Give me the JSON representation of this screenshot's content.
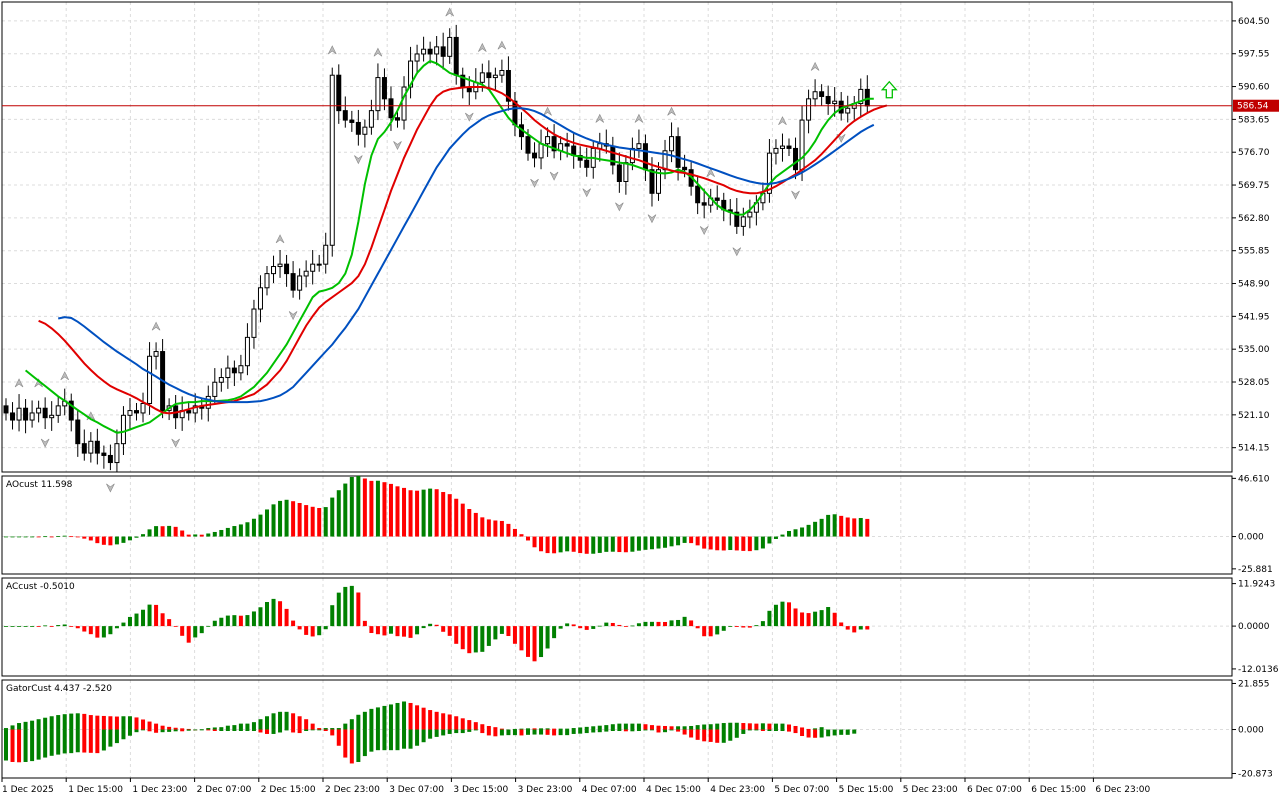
{
  "chart_data": {
    "type": "candlestick",
    "current_price": "586.54",
    "price_axis_ticks": [
      "604.50",
      "597.55",
      "590.60",
      "583.65",
      "576.70",
      "569.75",
      "562.80",
      "555.85",
      "548.90",
      "541.95",
      "535.00",
      "528.05",
      "521.10",
      "514.15"
    ],
    "time_axis_ticks": [
      "1 Dec 2025",
      "1 Dec 15:00",
      "1 Dec 23:00",
      "2 Dec 07:00",
      "2 Dec 15:00",
      "2 Dec 23:00",
      "3 Dec 07:00",
      "3 Dec 15:00",
      "3 Dec 23:00",
      "4 Dec 07:00",
      "4 Dec 15:00",
      "4 Dec 23:00",
      "5 Dec 07:00",
      "5 Dec 15:00",
      "5 Dec 23:00",
      "6 Dec 07:00",
      "6 Dec 15:00",
      "6 Dec 23:00"
    ],
    "price_range": [
      509.0,
      608.5
    ],
    "close": [
      521.5,
      520.0,
      522.5,
      520.0,
      521.5,
      522.5,
      520.5,
      521.0,
      523.0,
      524.0,
      520.0,
      515.0,
      513.0,
      515.5,
      513.0,
      512.5,
      511.0,
      515.0,
      521.0,
      522.0,
      521.5,
      523.5,
      533.5,
      534.5,
      522.0,
      523.0,
      520.5,
      522.0,
      521.5,
      523.0,
      522.5,
      525.0,
      528.0,
      529.0,
      531.0,
      530.0,
      531.5,
      537.5,
      543.5,
      548.0,
      551.0,
      552.5,
      553.0,
      551.0,
      547.5,
      550.5,
      551.5,
      553.0,
      553.0,
      557.0,
      593.0,
      585.5,
      583.5,
      583.0,
      580.5,
      582.0,
      585.5,
      592.5,
      588.0,
      584.0,
      583.5,
      590.5,
      596.0,
      597.5,
      598.5,
      597.5,
      599.0,
      597.0,
      601.0,
      593.0,
      590.5,
      589.5,
      591.5,
      593.5,
      592.5,
      593.0,
      594.0,
      587.5,
      582.5,
      580.0,
      576.5,
      575.5,
      578.5,
      580.0,
      577.0,
      578.5,
      578.0,
      576.0,
      575.0,
      573.5,
      577.5,
      578.5,
      578.0,
      574.0,
      570.5,
      574.5,
      577.5,
      578.5,
      573.0,
      568.0,
      573.0,
      577.0,
      580.0,
      573.5,
      573.0,
      569.5,
      566.0,
      565.5,
      567.0,
      566.5,
      564.5,
      564.0,
      561.0,
      563.0,
      564.0,
      566.0,
      568.0,
      576.5,
      577.5,
      578.0,
      577.5,
      573.0,
      583.5,
      588.0,
      589.5,
      588.5,
      587.0,
      587.5,
      585.0,
      586.0,
      587.0,
      590.0,
      586.5
    ],
    "series": [
      {
        "name": "",
        "color": "#00c000",
        "values": [
          530.5,
          529.4,
          528.3,
          527.2,
          526.1,
          525.0,
          524.1,
          523.1,
          522.1,
          521.2,
          520.2,
          519.5,
          518.7,
          518.0,
          517.3,
          517.5,
          518.0,
          518.5,
          519.0,
          519.5,
          520.5,
          521.5,
          522.5,
          523.4,
          523.6,
          523.8,
          523.8,
          524.0,
          524.0,
          524.0,
          524.1,
          524.2,
          524.5,
          525.0,
          526.0,
          527.0,
          528.5,
          530.0,
          532.0,
          534.0,
          536.0,
          538.5,
          541.0,
          543.5,
          546.0,
          547.2,
          547.5,
          548.0,
          549.0,
          551.0,
          555.0,
          562.0,
          570.0,
          576.0,
          579.5,
          581.0,
          583.0,
          585.5,
          588.5,
          591.0,
          593.5,
          595.0,
          596.0,
          595.5,
          594.5,
          593.5,
          593.0,
          592.5,
          592.0,
          591.5,
          591.0,
          590.0,
          588.0,
          586.0,
          584.0,
          582.5,
          581.5,
          580.5,
          579.5,
          578.5,
          578.0,
          577.5,
          577.0,
          576.5,
          576.0,
          575.8,
          575.5,
          575.5,
          575.2,
          575.0,
          574.8,
          574.5,
          574.3,
          574.0,
          573.5,
          573.0,
          572.6,
          572.3,
          572.2,
          572.4,
          573.0,
          572.5,
          571.5,
          570.0,
          568.5,
          567.0,
          565.5,
          564.5,
          564.0,
          563.5,
          563.5,
          564.5,
          566.0,
          568.0,
          570.0,
          571.5,
          572.5,
          573.5,
          574.5,
          575.5,
          577.0,
          579.0,
          581.5,
          583.5,
          585.0,
          586.0,
          586.5,
          587.0,
          587.5,
          588.0,
          588.0
        ]
      },
      {
        "name": "",
        "color": "#e00000",
        "values": [
          541.0,
          540.4,
          539.4,
          538.2,
          536.8,
          535.2,
          533.6,
          532.0,
          530.6,
          529.3,
          528.2,
          527.2,
          526.5,
          525.9,
          525.3,
          524.6,
          523.8,
          523.1,
          522.3,
          521.6,
          521.4,
          521.6,
          521.9,
          522.3,
          522.7,
          523.0,
          523.2,
          523.4,
          523.6,
          523.8,
          524.0,
          524.5,
          525.0,
          525.5,
          526.5,
          527.5,
          529.0,
          530.5,
          532.5,
          535.0,
          537.5,
          540.0,
          542.0,
          543.8,
          545.0,
          546.0,
          547.0,
          548.0,
          549.0,
          550.5,
          553.0,
          556.5,
          560.5,
          564.5,
          568.5,
          572.0,
          575.5,
          578.5,
          581.5,
          584.0,
          586.5,
          588.5,
          589.5,
          590.0,
          590.2,
          590.4,
          590.5,
          590.5,
          590.5,
          590.3,
          589.8,
          589.2,
          588.3,
          587.2,
          586.0,
          584.8,
          583.5,
          582.4,
          581.4,
          580.5,
          579.8,
          579.2,
          578.7,
          578.3,
          578.0,
          577.7,
          577.4,
          577.0,
          576.6,
          576.2,
          575.8,
          575.4,
          575.0,
          574.5,
          574.0,
          573.6,
          573.2,
          572.8,
          572.5,
          572.3,
          572.0,
          571.6,
          571.2,
          570.7,
          570.2,
          569.7,
          569.0,
          568.5,
          568.2,
          568.0,
          568.0,
          568.3,
          568.8,
          569.5,
          570.3,
          571.2,
          572.0,
          573.0,
          574.0,
          575.0,
          576.3,
          577.8,
          579.3,
          580.8,
          582.2,
          583.3,
          584.2,
          585.0,
          585.7,
          586.2,
          586.6
        ]
      },
      {
        "name": "",
        "color": "#0050c0",
        "values": [
          541.5,
          541.8,
          541.6,
          540.8,
          539.8,
          538.7,
          537.6,
          536.5,
          535.5,
          534.5,
          533.6,
          532.7,
          531.8,
          530.8,
          530.0,
          529.2,
          528.3,
          527.5,
          526.8,
          526.1,
          525.5,
          525.0,
          524.6,
          524.3,
          524.0,
          523.9,
          523.8,
          523.8,
          523.8,
          523.8,
          523.9,
          524.0,
          524.3,
          524.7,
          525.2,
          526.0,
          527.0,
          528.5,
          530.0,
          531.5,
          533.0,
          534.5,
          536.0,
          537.8,
          539.5,
          541.5,
          543.5,
          546.0,
          548.5,
          551.0,
          553.5,
          556.0,
          558.5,
          561.0,
          563.5,
          566.0,
          568.5,
          571.0,
          573.5,
          575.5,
          577.5,
          579.0,
          580.5,
          581.8,
          582.8,
          583.8,
          584.5,
          585.0,
          585.4,
          585.8,
          586.0,
          586.0,
          585.8,
          585.4,
          584.8,
          584.0,
          583.2,
          582.4,
          581.6,
          580.8,
          580.2,
          579.6,
          579.1,
          578.7,
          578.3,
          578.0,
          577.7,
          577.5,
          577.3,
          577.1,
          576.9,
          576.7,
          576.5,
          576.3,
          576.0,
          575.6,
          575.2,
          574.8,
          574.3,
          573.8,
          573.3,
          572.8,
          572.3,
          571.8,
          571.3,
          570.9,
          570.5,
          570.2,
          570.0,
          570.0,
          570.2,
          570.6,
          571.1,
          571.7,
          572.4,
          573.2,
          574.1,
          575.0,
          576.0,
          577.0,
          578.0,
          579.0,
          580.0,
          581.0,
          581.8,
          582.5
        ]
      }
    ],
    "panels": [
      {
        "label": "AOcust 11.598",
        "ticks": [
          "46.610",
          "0.000",
          "-25.881"
        ],
        "range": [
          -30.0,
          48.5
        ]
      },
      {
        "label": "ACcust -0.5010",
        "ticks": [
          "11.9243",
          "0.0000",
          "-12.0136"
        ],
        "range": [
          -14.0,
          13.5
        ]
      },
      {
        "label": "GatorCust 4.437 -2.520",
        "ticks": [
          "21.855",
          "0.000",
          "-20.873"
        ],
        "range": [
          -23.0,
          23.5
        ]
      }
    ]
  }
}
